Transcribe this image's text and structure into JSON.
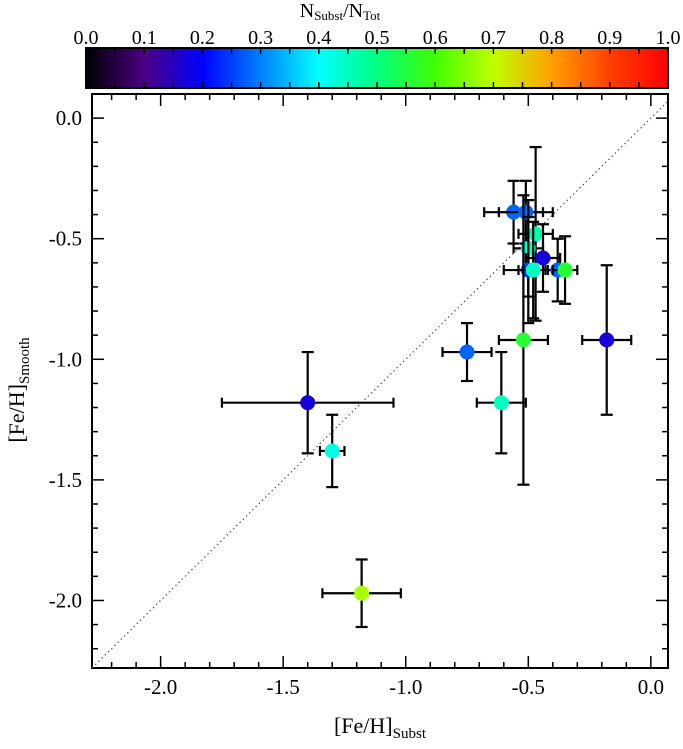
{
  "chart_data": {
    "type": "scatter",
    "xlabel": {
      "main": "[Fe/H]",
      "sub": "Subst"
    },
    "ylabel": {
      "main": "[Fe/H]",
      "sub": "Smooth"
    },
    "xlim": [
      -2.28,
      0.07
    ],
    "ylim": [
      -2.28,
      0.1
    ],
    "xticks": [
      "-2.0",
      "-1.5",
      "-1.0",
      "-0.5",
      "0.0"
    ],
    "yticks": [
      "0.0",
      "-0.5",
      "-1.0",
      "-1.5",
      "-2.0"
    ],
    "one_to_one_line": true,
    "colorbar": {
      "label": {
        "n1": "N",
        "s1": "Subst",
        "slash": "/",
        "n2": "N",
        "s2": "Tot"
      },
      "ticks": [
        "0.0",
        "0.1",
        "0.2",
        "0.3",
        "0.4",
        "0.5",
        "0.6",
        "0.7",
        "0.8",
        "0.9",
        "1.0"
      ],
      "range": [
        0,
        1
      ],
      "colormap": [
        "#000000",
        "#4b0082",
        "#0000ff",
        "#0080ff",
        "#00ffff",
        "#00ff80",
        "#40ff00",
        "#c0ff00",
        "#ffa000",
        "#ff4000",
        "#ff0000"
      ]
    },
    "points": [
      {
        "x": -0.56,
        "y": -0.39,
        "xerr": 0.12,
        "yerr": 0.13,
        "c": 0.28
      },
      {
        "x": -0.51,
        "y": -0.39,
        "xerr": 0.11,
        "yerr": 0.13,
        "c": 0.28
      },
      {
        "x": -0.47,
        "y": -0.48,
        "xerr": 0.07,
        "yerr": 0.36,
        "c": 0.46
      },
      {
        "x": -0.5,
        "y": -0.54,
        "xerr": 0.06,
        "yerr": 0.2,
        "c": 0.45
      },
      {
        "x": -0.44,
        "y": -0.58,
        "xerr": 0.07,
        "yerr": 0.14,
        "c": 0.17
      },
      {
        "x": -0.5,
        "y": -0.63,
        "xerr": 0.1,
        "yerr": 0.22,
        "c": 0.25
      },
      {
        "x": -0.48,
        "y": -0.63,
        "xerr": 0.06,
        "yerr": 0.2,
        "c": 0.45
      },
      {
        "x": -0.38,
        "y": -0.63,
        "xerr": 0.05,
        "yerr": 0.13,
        "c": 0.28
      },
      {
        "x": -0.35,
        "y": -0.63,
        "xerr": 0.05,
        "yerr": 0.14,
        "c": 0.56
      },
      {
        "x": -0.75,
        "y": -0.97,
        "xerr": 0.1,
        "yerr": 0.12,
        "c": 0.28
      },
      {
        "x": -0.52,
        "y": -0.92,
        "xerr": 0.1,
        "yerr": 0.6,
        "c": 0.56
      },
      {
        "x": -0.18,
        "y": -0.92,
        "xerr": 0.1,
        "yerr": 0.31,
        "c": 0.17
      },
      {
        "x": -0.61,
        "y": -1.18,
        "xerr": 0.1,
        "yerr": 0.21,
        "c": 0.45
      },
      {
        "x": -1.4,
        "y": -1.18,
        "xerr": 0.35,
        "yerr": 0.21,
        "c": 0.17
      },
      {
        "x": -1.3,
        "y": -1.38,
        "xerr": 0.05,
        "yerr": 0.15,
        "c": 0.42
      },
      {
        "x": -1.18,
        "y": -1.97,
        "xerr": 0.16,
        "yerr": 0.14,
        "c": 0.68
      }
    ]
  }
}
